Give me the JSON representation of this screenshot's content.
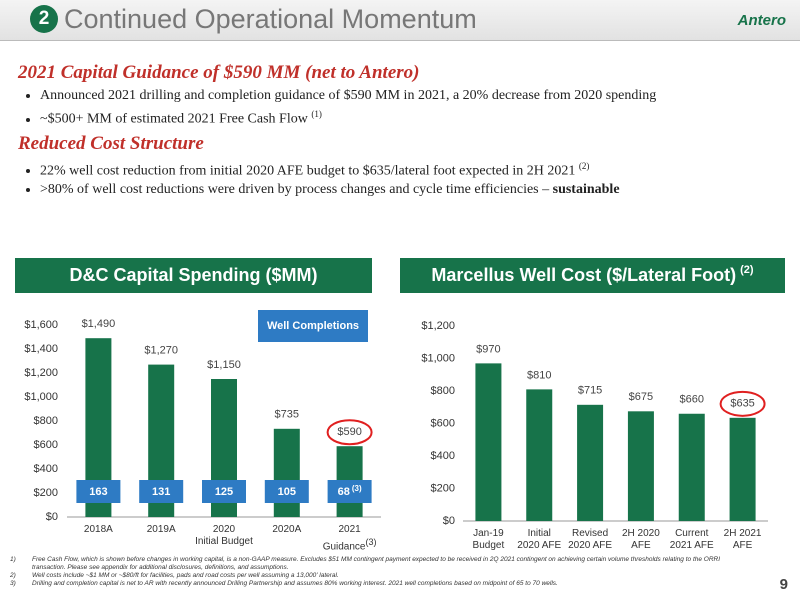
{
  "header": {
    "number": "2",
    "title": "Continued Operational Momentum",
    "logo": "Antero"
  },
  "sections": [
    {
      "heading": "2021 Capital Guidance of $590 MM (net to Antero)",
      "bullets": [
        {
          "text": "Announced 2021 drilling and completion guidance of $590 MM in 2021, a 20% decrease from 2020 spending"
        },
        {
          "text": "~$500+ MM of estimated 2021 Free Cash Flow",
          "ref": "(1)"
        }
      ]
    },
    {
      "heading": "Reduced Cost Structure",
      "bullets": [
        {
          "text": "22% well cost reduction from initial 2020 AFE budget to $635/lateral foot expected in 2H 2021",
          "ref": "(2)"
        },
        {
          "text": ">80% of well cost reductions were driven by process changes and cycle time efficiencies – ",
          "emphasis": "sustainable"
        }
      ]
    }
  ],
  "chart_data": [
    {
      "type": "bar",
      "title": "D&C Capital Spending ($MM)",
      "color": "#17734a",
      "categories": [
        "2018A",
        "2019A",
        "2020\nInitial Budget",
        "2020A",
        "2021\nGuidance"
      ],
      "category_refs": [
        null,
        null,
        null,
        null,
        "(3)"
      ],
      "values": [
        1490,
        1270,
        1150,
        735,
        590
      ],
      "value_labels": [
        "$1,490",
        "$1,270",
        "$1,150",
        "$735",
        "$590"
      ],
      "ylim": [
        0,
        1600
      ],
      "yticks": [
        {
          "value": 0,
          "label": "$0"
        },
        {
          "value": 200,
          "label": "$200"
        },
        {
          "value": 400,
          "label": "$400"
        },
        {
          "value": 600,
          "label": "$600"
        },
        {
          "value": 800,
          "label": "$800"
        },
        {
          "value": 1000,
          "label": "$1,000"
        },
        {
          "value": 1200,
          "label": "$1,200"
        },
        {
          "value": 1400,
          "label": "$1,400"
        },
        {
          "value": 1600,
          "label": "$1,600"
        }
      ],
      "completions_label": "Well Completions",
      "completions_color": "#2e7bc4",
      "completions": [
        163,
        131,
        125,
        105,
        68
      ],
      "completion_refs": [
        null,
        null,
        null,
        null,
        "(3)"
      ]
    },
    {
      "type": "bar",
      "title": "Marcellus Well Cost ($/Lateral Foot)",
      "title_ref": "(2)",
      "color": "#17734a",
      "categories": [
        "Jan-19\nBudget",
        "Initial\n2020 AFE",
        "Revised\n2020 AFE",
        "2H 2020\nAFE",
        "Current\n2021 AFE",
        "2H 2021\nAFE"
      ],
      "values": [
        970,
        810,
        715,
        675,
        660,
        635
      ],
      "value_labels": [
        "$970",
        "$810",
        "$715",
        "$675",
        "$660",
        "$635"
      ],
      "ylim": [
        0,
        1200
      ],
      "yticks": [
        {
          "value": 0,
          "label": "$0"
        },
        {
          "value": 200,
          "label": "$200"
        },
        {
          "value": 400,
          "label": "$400"
        },
        {
          "value": 600,
          "label": "$600"
        },
        {
          "value": 800,
          "label": "$800"
        },
        {
          "value": 1000,
          "label": "$1,000"
        },
        {
          "value": 1200,
          "label": "$1,200"
        }
      ]
    }
  ],
  "footnotes": [
    {
      "number": "1)",
      "text": "Free Cash Flow, which is shown before changes in working capital, is a non-GAAP measure. Excludes $51 MM contingent payment expected to be received in 2Q 2021 contingent on achieving certain volume thresholds relating to the ORRI transaction. Please see appendix for additional disclosures, definitions, and assumptions."
    },
    {
      "number": "2)",
      "text": "Well costs include ~$1 MM or ~$80/ft for facilities, pads and road costs per well assuming a 13,000' lateral."
    },
    {
      "number": "3)",
      "text": "Drilling and completion capital is net to AR with recently announced Drilling Partnership and assumes 80% working interest. 2021 well completions based on midpoint of 65 to 70 wells."
    }
  ],
  "page_number": "9"
}
